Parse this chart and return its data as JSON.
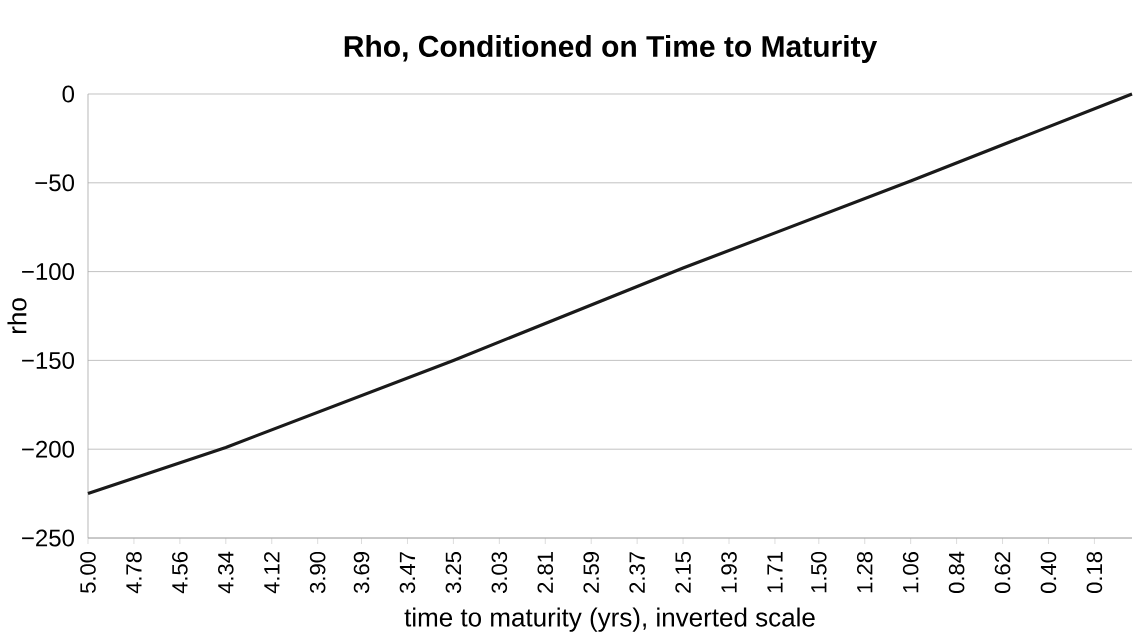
{
  "chart_data": {
    "type": "line",
    "title": "Rho, Conditioned on Time to Maturity",
    "xlabel": "time to maturity (yrs), inverted scale",
    "ylabel": "rho",
    "x": [
      5.0,
      4.34,
      3.25,
      2.15,
      1.06,
      0.0
    ],
    "values": [
      -225,
      -199,
      -150,
      -98,
      -49,
      0
    ],
    "color": "#1a1a1a",
    "xlim": [
      5.0,
      0.0
    ],
    "xticks": [
      {
        "value": 5.0,
        "label": "5.00"
      },
      {
        "value": 4.78,
        "label": "4.78"
      },
      {
        "value": 4.56,
        "label": "4.56"
      },
      {
        "value": 4.34,
        "label": "4.34"
      },
      {
        "value": 4.12,
        "label": "4.12"
      },
      {
        "value": 3.9,
        "label": "3.90"
      },
      {
        "value": 3.69,
        "label": "3.69"
      },
      {
        "value": 3.47,
        "label": "3.47"
      },
      {
        "value": 3.25,
        "label": "3.25"
      },
      {
        "value": 3.03,
        "label": "3.03"
      },
      {
        "value": 2.81,
        "label": "2.81"
      },
      {
        "value": 2.59,
        "label": "2.59"
      },
      {
        "value": 2.37,
        "label": "2.37"
      },
      {
        "value": 2.15,
        "label": "2.15"
      },
      {
        "value": 1.93,
        "label": "1.93"
      },
      {
        "value": 1.71,
        "label": "1.71"
      },
      {
        "value": 1.5,
        "label": "1.50"
      },
      {
        "value": 1.28,
        "label": "1.28"
      },
      {
        "value": 1.06,
        "label": "1.06"
      },
      {
        "value": 0.84,
        "label": "0.84"
      },
      {
        "value": 0.62,
        "label": "0.62"
      },
      {
        "value": 0.4,
        "label": "0.40"
      },
      {
        "value": 0.18,
        "label": "0.18"
      }
    ],
    "ylim": [
      -250,
      0
    ],
    "yticks": [
      {
        "value": -250,
        "label": "−250"
      },
      {
        "value": -200,
        "label": "−200"
      },
      {
        "value": -150,
        "label": "−150"
      },
      {
        "value": -100,
        "label": "−100"
      },
      {
        "value": -50,
        "label": "−50"
      },
      0
    ],
    "grid": "y"
  }
}
